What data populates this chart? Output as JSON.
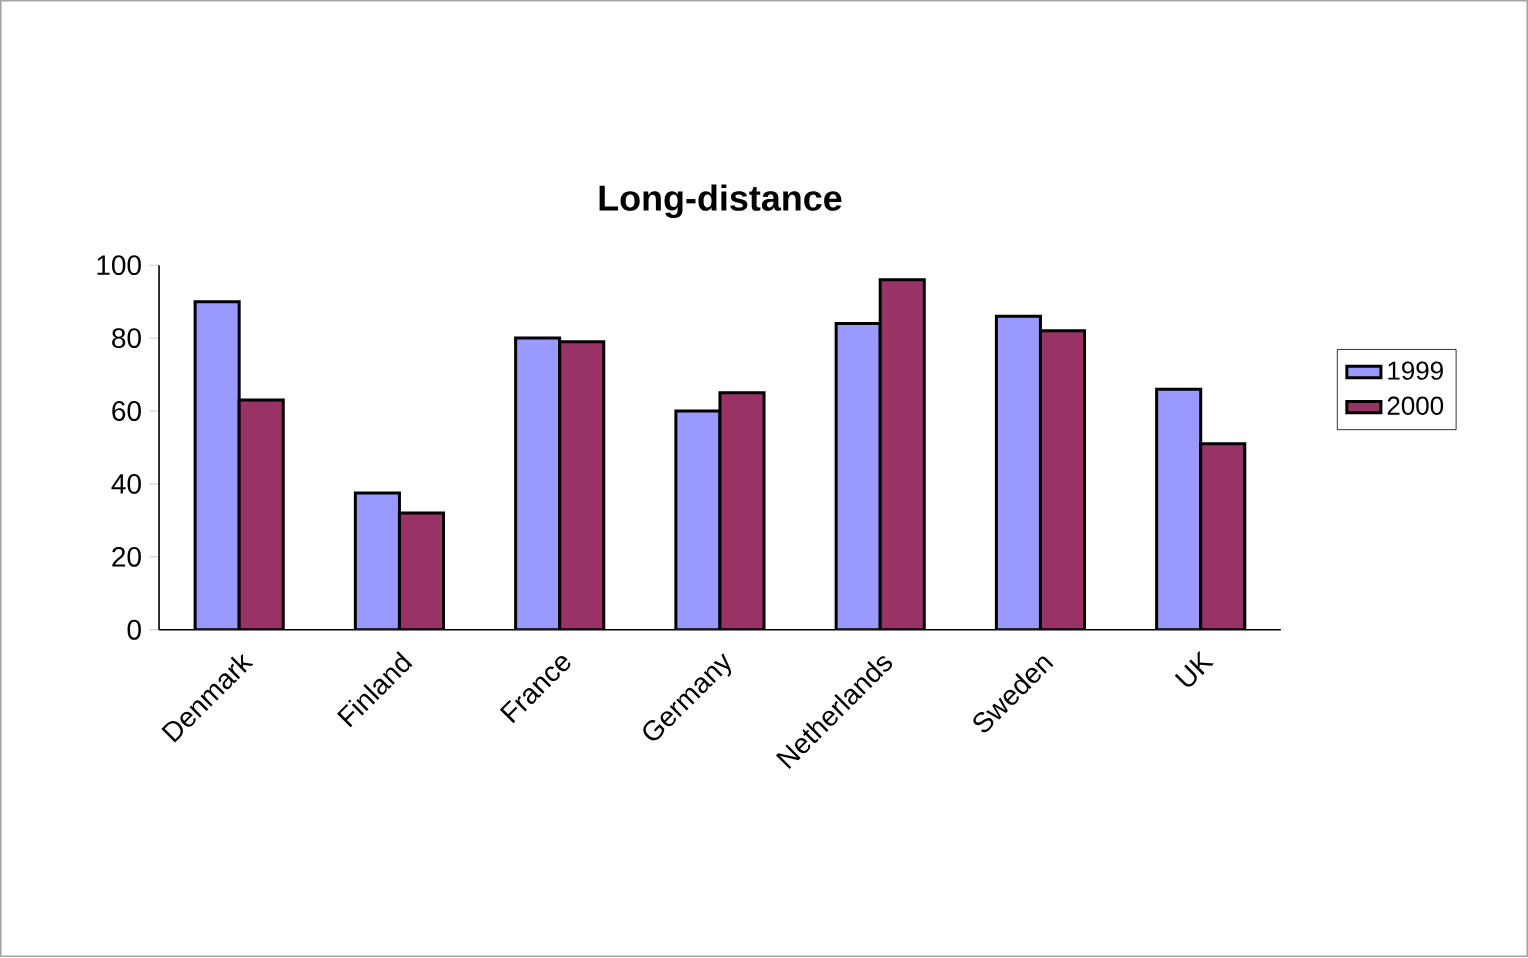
{
  "chart_data": {
    "type": "bar",
    "title": "Long-distance",
    "categories": [
      "Denmark",
      "Finland",
      "France",
      "Germany",
      "Netherlands",
      "Sweden",
      "UK"
    ],
    "series": [
      {
        "name": "1999",
        "color": "#9999ff",
        "values": [
          90,
          37.5,
          80,
          60,
          84,
          86,
          66
        ]
      },
      {
        "name": "2000",
        "color": "#993366",
        "values": [
          63,
          32,
          79,
          65,
          96,
          82,
          51
        ]
      }
    ],
    "ylim": [
      0,
      100
    ],
    "yticks": [
      0,
      20,
      40,
      60,
      80,
      100
    ],
    "legend": "right"
  }
}
